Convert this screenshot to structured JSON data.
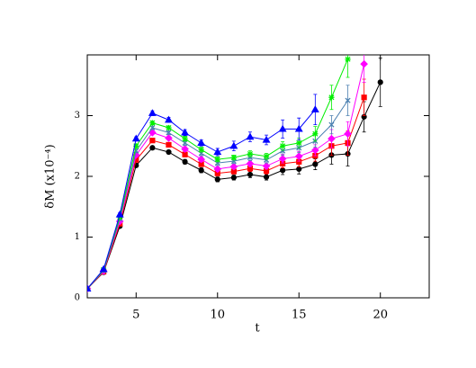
{
  "chart_data": {
    "type": "line",
    "x_label": "t",
    "y_label": "δM  (x10⁻⁴)",
    "x": [
      2,
      3,
      4,
      5,
      6,
      7,
      8,
      9,
      10,
      11,
      12,
      13,
      14,
      15,
      16,
      17,
      18,
      19,
      20
    ],
    "xlim": [
      2,
      23
    ],
    "ylim": [
      0,
      4
    ],
    "xticks": [
      5,
      10,
      15,
      20
    ],
    "yticks": [
      0,
      1,
      2,
      3
    ],
    "series": [
      {
        "color": "#000000",
        "marker": "circle",
        "values": [
          0.15,
          0.42,
          1.18,
          2.18,
          2.47,
          2.4,
          2.24,
          2.1,
          1.95,
          1.98,
          2.03,
          1.99,
          2.1,
          2.12,
          2.2,
          2.35,
          2.37,
          2.98,
          3.55
        ],
        "errors": [
          0.01,
          0.02,
          0.03,
          0.03,
          0.03,
          0.03,
          0.04,
          0.04,
          0.04,
          0.04,
          0.05,
          0.05,
          0.07,
          0.08,
          0.09,
          0.15,
          0.2,
          0.25,
          0.4
        ]
      },
      {
        "color": "#ff0000",
        "marker": "square",
        "values": [
          0.15,
          0.43,
          1.22,
          2.27,
          2.59,
          2.52,
          2.36,
          2.2,
          2.05,
          2.08,
          2.13,
          2.09,
          2.21,
          2.24,
          2.34,
          2.5,
          2.55,
          3.3,
          null
        ],
        "errors": [
          0.01,
          0.02,
          0.03,
          0.03,
          0.03,
          0.03,
          0.04,
          0.04,
          0.04,
          0.04,
          0.05,
          0.05,
          0.07,
          0.08,
          0.09,
          0.15,
          0.2,
          0.3,
          null
        ]
      },
      {
        "color": "#ff00ff",
        "marker": "diamond",
        "values": [
          0.15,
          0.44,
          1.26,
          2.35,
          2.72,
          2.63,
          2.45,
          2.28,
          2.12,
          2.16,
          2.21,
          2.17,
          2.29,
          2.33,
          2.43,
          2.62,
          2.7,
          3.85,
          null
        ],
        "errors": [
          0.01,
          0.02,
          0.03,
          0.03,
          0.03,
          0.03,
          0.04,
          0.04,
          0.04,
          0.04,
          0.05,
          0.05,
          0.07,
          0.08,
          0.09,
          0.15,
          0.2,
          0.3,
          null
        ]
      },
      {
        "color": "#4a7fb0",
        "marker": "cross",
        "values": [
          0.15,
          0.45,
          1.3,
          2.42,
          2.8,
          2.72,
          2.55,
          2.38,
          2.22,
          2.25,
          2.31,
          2.27,
          2.42,
          2.47,
          2.58,
          2.85,
          3.25,
          null,
          null
        ],
        "errors": [
          0.01,
          0.02,
          0.03,
          0.03,
          0.03,
          0.03,
          0.04,
          0.04,
          0.04,
          0.04,
          0.05,
          0.05,
          0.07,
          0.08,
          0.1,
          0.15,
          0.25,
          null,
          null
        ]
      },
      {
        "color": "#00ee00",
        "marker": "star",
        "values": [
          0.15,
          0.46,
          1.33,
          2.5,
          2.88,
          2.8,
          2.62,
          2.44,
          2.28,
          2.31,
          2.37,
          2.33,
          2.5,
          2.55,
          2.7,
          3.3,
          3.93,
          null,
          null
        ],
        "errors": [
          0.01,
          0.02,
          0.03,
          0.03,
          0.03,
          0.03,
          0.04,
          0.04,
          0.04,
          0.04,
          0.05,
          0.05,
          0.07,
          0.08,
          0.12,
          0.2,
          0.3,
          null,
          null
        ]
      },
      {
        "color": "#0000ff",
        "marker": "triangle",
        "values": [
          0.15,
          0.47,
          1.37,
          2.62,
          3.04,
          2.93,
          2.72,
          2.55,
          2.4,
          2.5,
          2.65,
          2.6,
          2.78,
          2.78,
          3.1,
          null,
          null,
          null,
          null
        ],
        "errors": [
          0.01,
          0.02,
          0.03,
          0.03,
          0.04,
          0.04,
          0.05,
          0.05,
          0.06,
          0.08,
          0.08,
          0.08,
          0.15,
          0.18,
          0.25,
          null,
          null,
          null,
          null
        ]
      }
    ]
  }
}
